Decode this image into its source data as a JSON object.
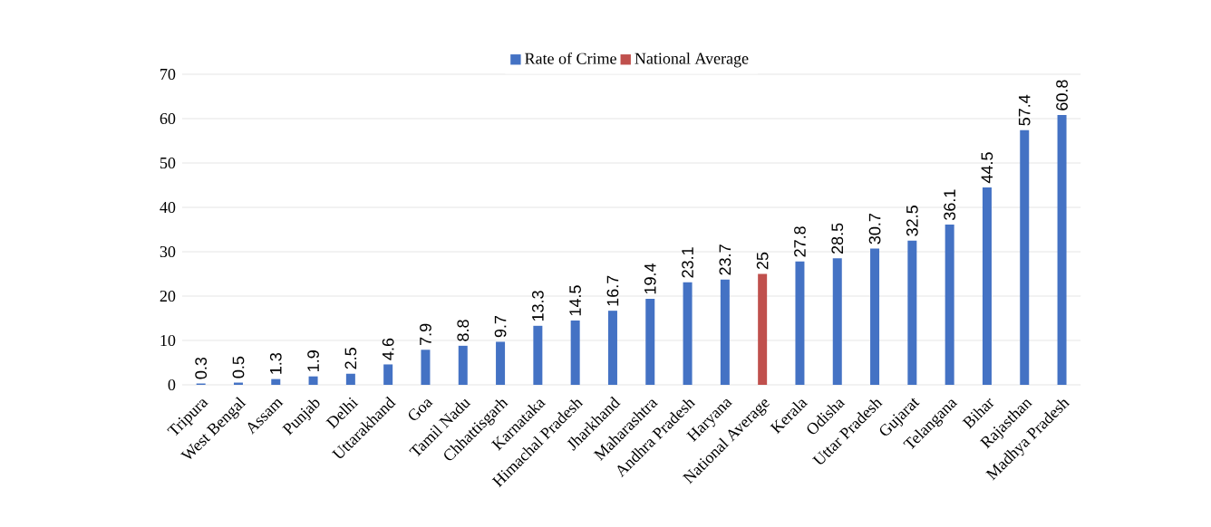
{
  "chart_data": {
    "type": "bar",
    "categories": [
      "Tripura",
      "West Bengal",
      "Assam",
      "Punjab",
      "Delhi",
      "Uttarakhand",
      "Goa",
      "Tamil Nadu",
      "Chhattisgarh",
      "Karnataka",
      "Himachal Pradesh",
      "Jharkhand",
      "Maharashtra",
      "Andhra Pradesh",
      "Haryana",
      "National Average",
      "Kerala",
      "Odisha",
      "Uttar Pradesh",
      "Gujarat",
      "Telangana",
      "Bihar",
      "Rajasthan",
      "Madhya Pradesh"
    ],
    "series": [
      {
        "name": "Rate of Crime",
        "color": "#4472c4",
        "values": [
          0.3,
          0.5,
          1.3,
          1.9,
          2.5,
          4.6,
          7.9,
          8.8,
          9.7,
          13.3,
          14.5,
          16.7,
          19.4,
          23.1,
          23.7,
          null,
          27.8,
          28.5,
          30.7,
          32.5,
          36.1,
          44.5,
          57.4,
          60.8
        ]
      },
      {
        "name": "National Average",
        "color": "#c0504d",
        "values": [
          null,
          null,
          null,
          null,
          null,
          null,
          null,
          null,
          null,
          null,
          null,
          null,
          null,
          null,
          null,
          25,
          null,
          null,
          null,
          null,
          null,
          null,
          null,
          null
        ]
      }
    ],
    "ylim": [
      0,
      70
    ],
    "yticks": [
      0,
      10,
      20,
      30,
      40,
      50,
      60,
      70
    ],
    "grid": "y",
    "legend": "top",
    "data_labels": true
  }
}
